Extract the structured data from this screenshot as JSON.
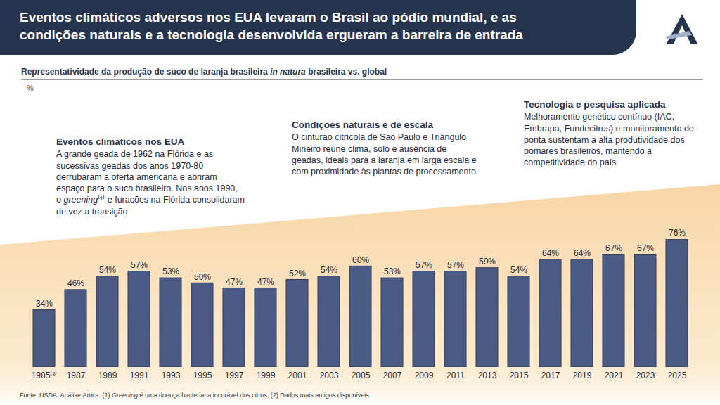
{
  "chart_data": {
    "type": "bar",
    "title": "Eventos climáticos adversos nos EUA levaram o Brasil ao pódio mundial, e as condições naturais e a tecnologia desenvolvida ergueram a barreira de entrada",
    "subtitle": "Representatividade da produção de suco de laranja brasileira in natura brasileira vs. global",
    "y_label": "%",
    "italic": [
      "in natura",
      "greening",
      "Greening"
    ],
    "annotations": [
      {
        "title": "Eventos climáticos nos EUA",
        "text": "A grande geada de 1962 na Flórida e as sucessivas geadas dos anos 1970-80 derrubaram a oferta americana e abriram espaço para o suco brasileiro. Nos anos 1990, o greening⁽¹⁾ e furacões na Flórida consolidaram de vez a transição"
      },
      {
        "title": "Condições naturais e de escala",
        "text": "O cinturão citrícola de São Paulo e Triângulo Mineiro reúne clima, solo e ausência de geadas, ideais para a laranja em larga escala e com proximidade às plantas de processamento"
      },
      {
        "title": "Tecnologia e pesquisa aplicada",
        "text": "Melhoramento genético contínuo (IAC, Embrapa, Fundecitrus) e monitoramento de ponta sustentam a alta produtividade dos pomares brasileiros, mantendo a competitividade do país"
      }
    ],
    "categories": [
      "1985⁽²⁾",
      "1987",
      "1989",
      "1991",
      "1993",
      "1995",
      "1997",
      "1999",
      "2001",
      "2003",
      "2005",
      "2007",
      "2009",
      "2011",
      "2013",
      "2015",
      "2017",
      "2019",
      "2021",
      "2023",
      "2025"
    ],
    "values": [
      34,
      46,
      54,
      57,
      53,
      50,
      47,
      47,
      52,
      54,
      60,
      53,
      57,
      57,
      59,
      54,
      64,
      64,
      67,
      67,
      76
    ],
    "value_labels": [
      "34%",
      "46%",
      "54%",
      "57%",
      "53%",
      "50%",
      "47%",
      "47%",
      "52%",
      "54%",
      "60%",
      "53%",
      "57%",
      "57%",
      "59%",
      "54%",
      "64%",
      "64%",
      "67%",
      "67%",
      "76%"
    ],
    "color": "#4b5a84",
    "ylim": [
      0,
      76
    ],
    "yticks": [],
    "tick_labels": "x",
    "data_labels": true,
    "grid": false,
    "source": "Fonte: USDA; Análise Ártica. (1) Greening é uma doença bacteriana incurável dos citros; (2) Dados mais antigos disponíveis."
  }
}
